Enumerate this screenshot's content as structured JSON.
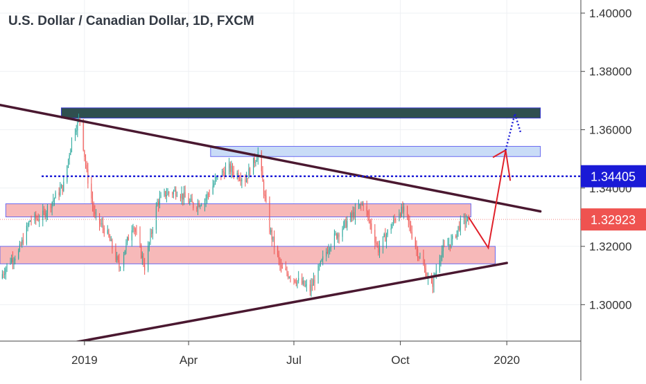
{
  "header": {
    "title": "U.S. Dollar / Canadian Dollar, 1D, FXCM"
  },
  "colors": {
    "up": "#26a69a",
    "down": "#ef5350",
    "trendline": "#4a1830",
    "resistance_zone": "#2f4f4f",
    "blue_zone": "#c9dcf7",
    "red_zone": "#f7b9b9",
    "blue_line": "#1a1ad6",
    "price_label": "#ef5350",
    "level_label": "#1a1ad6",
    "projection_arrow": "#e0202a",
    "projection_dotted": "#1a1ad6"
  },
  "chart_data": {
    "type": "candlestick",
    "title": "U.S. Dollar / Canadian Dollar, 1D, FXCM",
    "ylim": [
      1.2875,
      1.4045
    ],
    "y_ticks": [
      {
        "value": 1.4,
        "label": "1.40000"
      },
      {
        "value": 1.38,
        "label": "1.38000"
      },
      {
        "value": 1.36,
        "label": "1.36000"
      },
      {
        "value": 1.34,
        "label": "1.34000"
      },
      {
        "value": 1.32,
        "label": "1.32000"
      },
      {
        "value": 1.3,
        "label": "1.30000"
      }
    ],
    "x_ticks": [
      {
        "date": "2019-01-01",
        "label": "2019"
      },
      {
        "date": "2019-04-01",
        "label": "Apr"
      },
      {
        "date": "2019-07-01",
        "label": "Jul"
      },
      {
        "date": "2019-10-01",
        "label": "Oct"
      },
      {
        "date": "2020-01-01",
        "label": "2020"
      }
    ],
    "xlim": [
      "2018-10-20",
      "2020-03-05"
    ],
    "grid": true,
    "anchors": [
      [
        "2018-10-20",
        1.309
      ],
      [
        "2018-10-28",
        1.315
      ],
      [
        "2018-11-05",
        1.318
      ],
      [
        "2018-11-15",
        1.329
      ],
      [
        "2018-11-25",
        1.33
      ],
      [
        "2018-12-05",
        1.336
      ],
      [
        "2018-12-14",
        1.341
      ],
      [
        "2018-12-22",
        1.359
      ],
      [
        "2018-12-28",
        1.364
      ],
      [
        "2019-01-03",
        1.345
      ],
      [
        "2019-01-10",
        1.33
      ],
      [
        "2019-01-20",
        1.325
      ],
      [
        "2019-01-31",
        1.313
      ],
      [
        "2019-02-12",
        1.328
      ],
      [
        "2019-02-22",
        1.313
      ],
      [
        "2019-03-05",
        1.335
      ],
      [
        "2019-03-12",
        1.338
      ],
      [
        "2019-03-22",
        1.339
      ],
      [
        "2019-04-05",
        1.334
      ],
      [
        "2019-04-15",
        1.336
      ],
      [
        "2019-04-25",
        1.343
      ],
      [
        "2019-05-05",
        1.347
      ],
      [
        "2019-05-20",
        1.343
      ],
      [
        "2019-05-31",
        1.352
      ],
      [
        "2019-06-10",
        1.326
      ],
      [
        "2019-06-20",
        1.312
      ],
      [
        "2019-06-28",
        1.31
      ],
      [
        "2019-07-15",
        1.305
      ],
      [
        "2019-08-01",
        1.321
      ],
      [
        "2019-08-15",
        1.328
      ],
      [
        "2019-08-30",
        1.335
      ],
      [
        "2019-09-12",
        1.319
      ],
      [
        "2019-09-30",
        1.332
      ],
      [
        "2019-10-05",
        1.332
      ],
      [
        "2019-10-15",
        1.319
      ],
      [
        "2019-10-28",
        1.306
      ],
      [
        "2019-11-05",
        1.318
      ],
      [
        "2019-11-15",
        1.322
      ],
      [
        "2019-11-22",
        1.328
      ],
      [
        "2019-11-29",
        1.3292
      ]
    ],
    "last_price": {
      "value": 1.32923,
      "label": "1.32923"
    },
    "annotations": {
      "trendline_upper": {
        "from": [
          "2018-10-20",
          1.3685
        ],
        "to": [
          "2020-01-30",
          1.332
        ]
      },
      "trendline_lower": {
        "from": [
          "2018-12-25",
          1.2872
        ],
        "to": [
          "2020-01-01",
          1.3143
        ]
      },
      "dark_zone": {
        "from": "2018-12-12",
        "to": "2020-01-30",
        "y0": 1.364,
        "y1": 1.3675
      },
      "blue_zone": {
        "from": "2019-04-20",
        "to": "2020-01-30",
        "y0": 1.3508,
        "y1": 1.3543
      },
      "red_zone_upper": {
        "from": "2018-10-25",
        "to": "2019-12-01",
        "y0": 1.3301,
        "y1": 1.3346
      },
      "red_zone_lower": {
        "from": "2018-10-20",
        "to": "2019-12-22",
        "y0": 1.314,
        "y1": 1.32
      },
      "dotted_level": {
        "value": 1.34405,
        "label": "1.34405",
        "from": "2018-11-25"
      },
      "projection": {
        "points": [
          [
            "2019-11-29",
            1.33
          ],
          [
            "2019-12-16",
            1.3195
          ],
          [
            "2019-12-31",
            1.353
          ]
        ],
        "branch": [
          [
            "2019-12-31",
            1.353
          ],
          [
            "2020-01-04",
            1.3425
          ]
        ],
        "branch2": [
          [
            "2019-12-31",
            1.353
          ],
          [
            "2019-12-20",
            1.3505
          ]
        ],
        "dotted": [
          [
            "2019-12-31",
            1.353
          ],
          [
            "2020-01-08",
            1.3655
          ],
          [
            "2020-01-13",
            1.359
          ]
        ]
      }
    }
  }
}
